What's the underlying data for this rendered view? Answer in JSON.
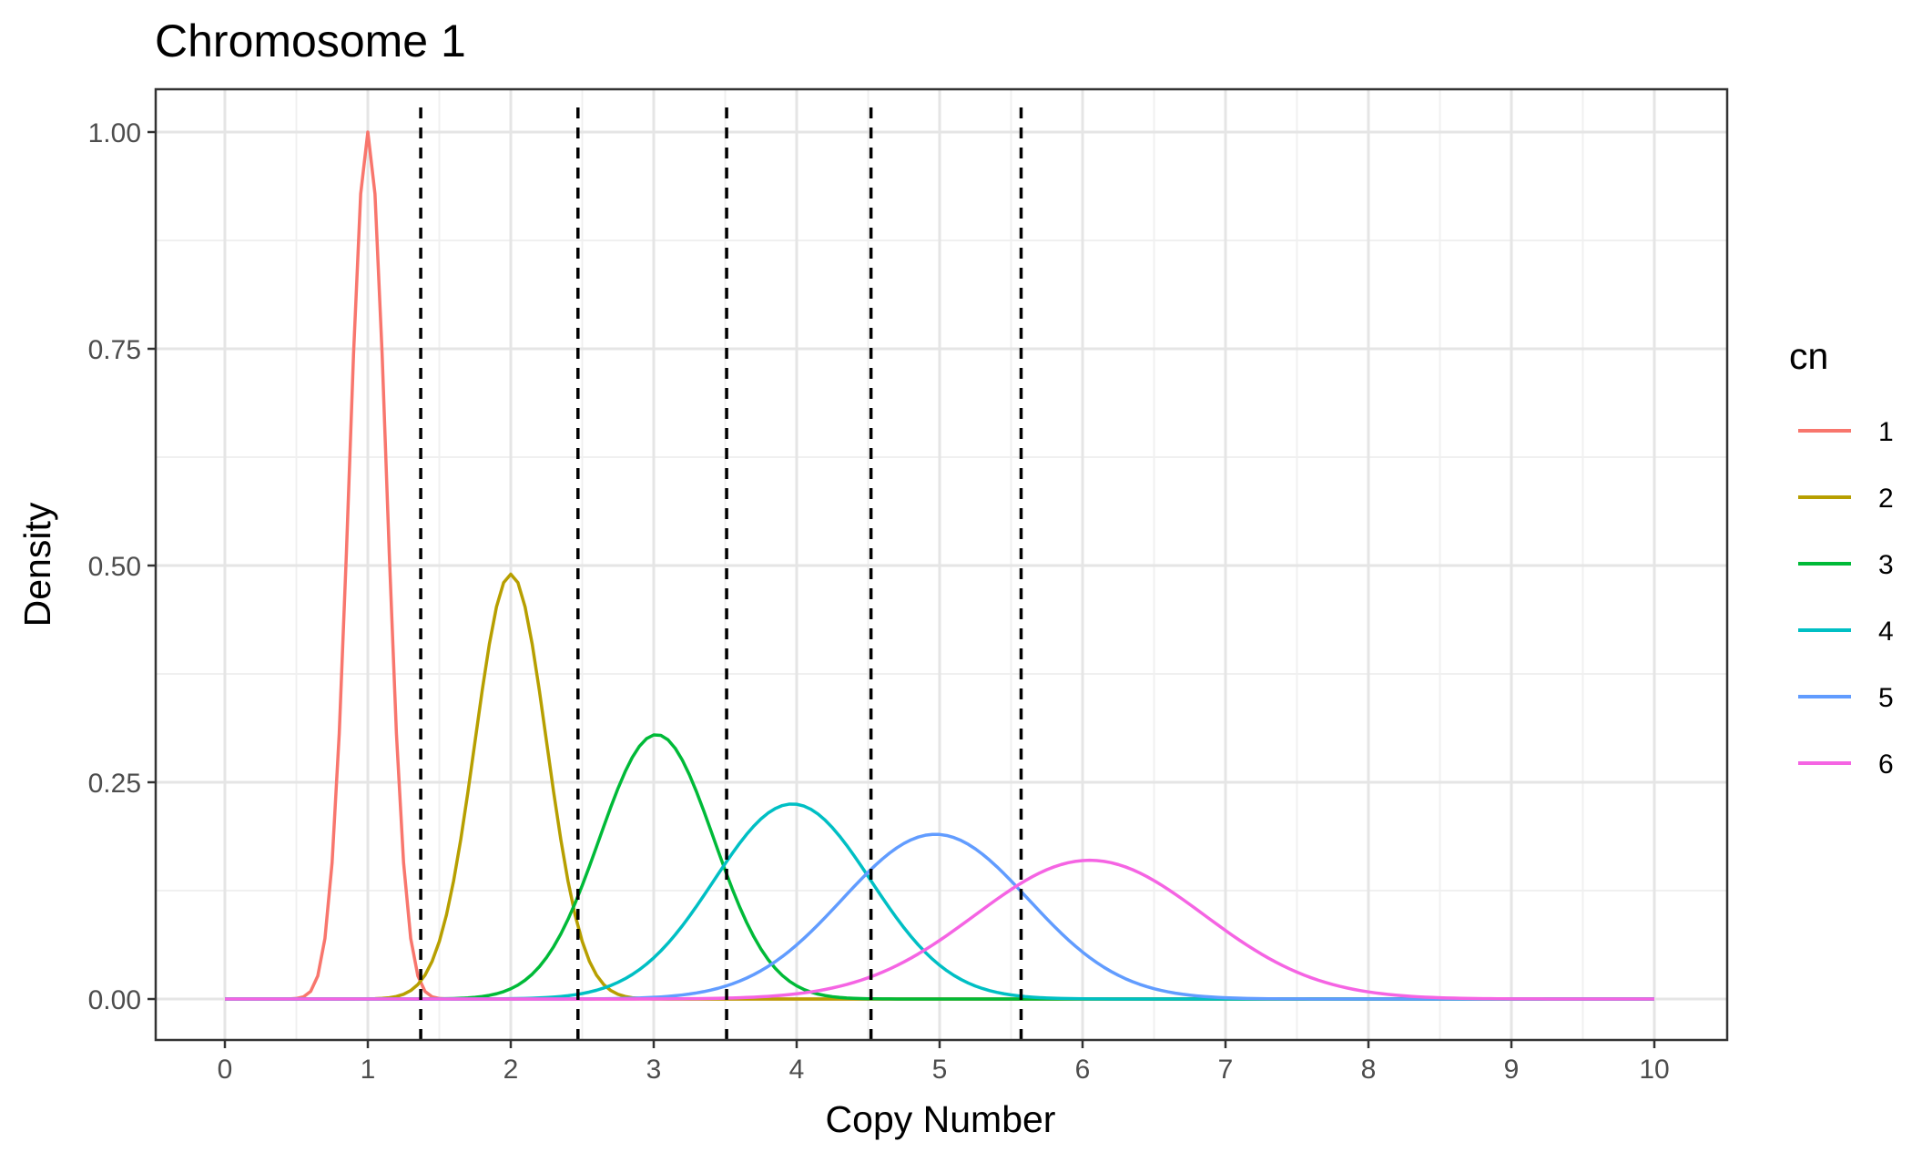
{
  "chart_data": {
    "type": "line",
    "title": "Chromosome 1",
    "xlabel": "Copy Number",
    "ylabel": "Density",
    "xlim": [
      0,
      10
    ],
    "ylim": [
      0,
      1
    ],
    "x_ticks": [
      "0",
      "1",
      "2",
      "3",
      "4",
      "5",
      "6",
      "7",
      "8",
      "9",
      "10"
    ],
    "y_ticks": [
      "0.00",
      "0.25",
      "0.50",
      "0.75",
      "1.00"
    ],
    "grid": true,
    "legend": {
      "title": "cn",
      "position": "right",
      "entries": [
        "1",
        "2",
        "3",
        "4",
        "5",
        "6"
      ]
    },
    "series": [
      {
        "name": "1",
        "color": "#F8766D",
        "curve": "normal",
        "mean": 1.0,
        "sd": 0.13,
        "peak": 1.0
      },
      {
        "name": "2",
        "color": "#B79F00",
        "curve": "normal",
        "mean": 2.0,
        "sd": 0.25,
        "peak": 0.49
      },
      {
        "name": "3",
        "color": "#00BA38",
        "curve": "normal",
        "mean": 3.02,
        "sd": 0.4,
        "peak": 0.305
      },
      {
        "name": "4",
        "color": "#00BFC4",
        "curve": "normal",
        "mean": 3.97,
        "sd": 0.55,
        "peak": 0.225
      },
      {
        "name": "5",
        "color": "#619CFF",
        "curve": "normal",
        "mean": 4.97,
        "sd": 0.65,
        "peak": 0.19
      },
      {
        "name": "6",
        "color": "#F564E3",
        "curve": "normal",
        "mean": 6.05,
        "sd": 0.8,
        "peak": 0.16
      }
    ],
    "vlines": {
      "style": "dashed",
      "color": "#000000",
      "x": [
        1.37,
        2.47,
        3.51,
        4.52,
        5.57
      ]
    }
  }
}
